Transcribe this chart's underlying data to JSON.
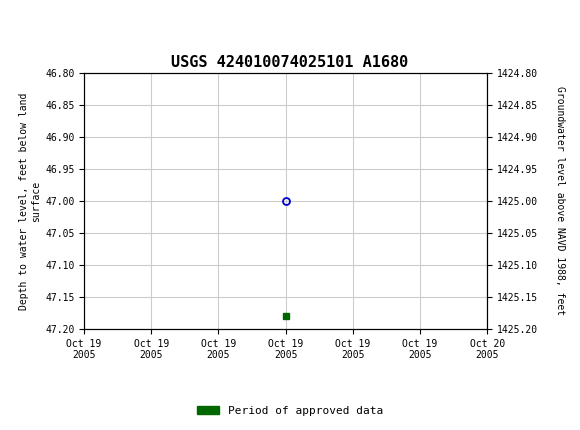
{
  "title": "USGS 424010074025101 A1680",
  "title_fontsize": 11,
  "header_color": "#1a6e3c",
  "ylabel_left": "Depth to water level, feet below land\nsurface",
  "ylabel_right": "Groundwater level above NAVD 1988, feet",
  "ylim_left": [
    46.8,
    47.2
  ],
  "ylim_right": [
    1424.8,
    1425.2
  ],
  "yticks_left": [
    46.8,
    46.85,
    46.9,
    46.95,
    47.0,
    47.05,
    47.1,
    47.15,
    47.2
  ],
  "yticks_right": [
    1424.8,
    1424.85,
    1424.9,
    1424.95,
    1425.0,
    1425.05,
    1425.1,
    1425.15,
    1425.2
  ],
  "xlim": [
    0,
    6
  ],
  "xtick_labels": [
    "Oct 19\n2005",
    "Oct 19\n2005",
    "Oct 19\n2005",
    "Oct 19\n2005",
    "Oct 19\n2005",
    "Oct 19\n2005",
    "Oct 20\n2005"
  ],
  "xtick_positions": [
    0,
    1,
    2,
    3,
    4,
    5,
    6
  ],
  "data_point_x": 3,
  "data_point_y": 47.0,
  "data_point_color": "#0000cc",
  "green_square_x": 3,
  "green_square_y": 47.18,
  "green_square_color": "#006600",
  "legend_label": "Period of approved data",
  "legend_color": "#006600",
  "grid_color": "#cccccc",
  "background_color": "#ffffff",
  "font_family": "DejaVu Sans Mono"
}
